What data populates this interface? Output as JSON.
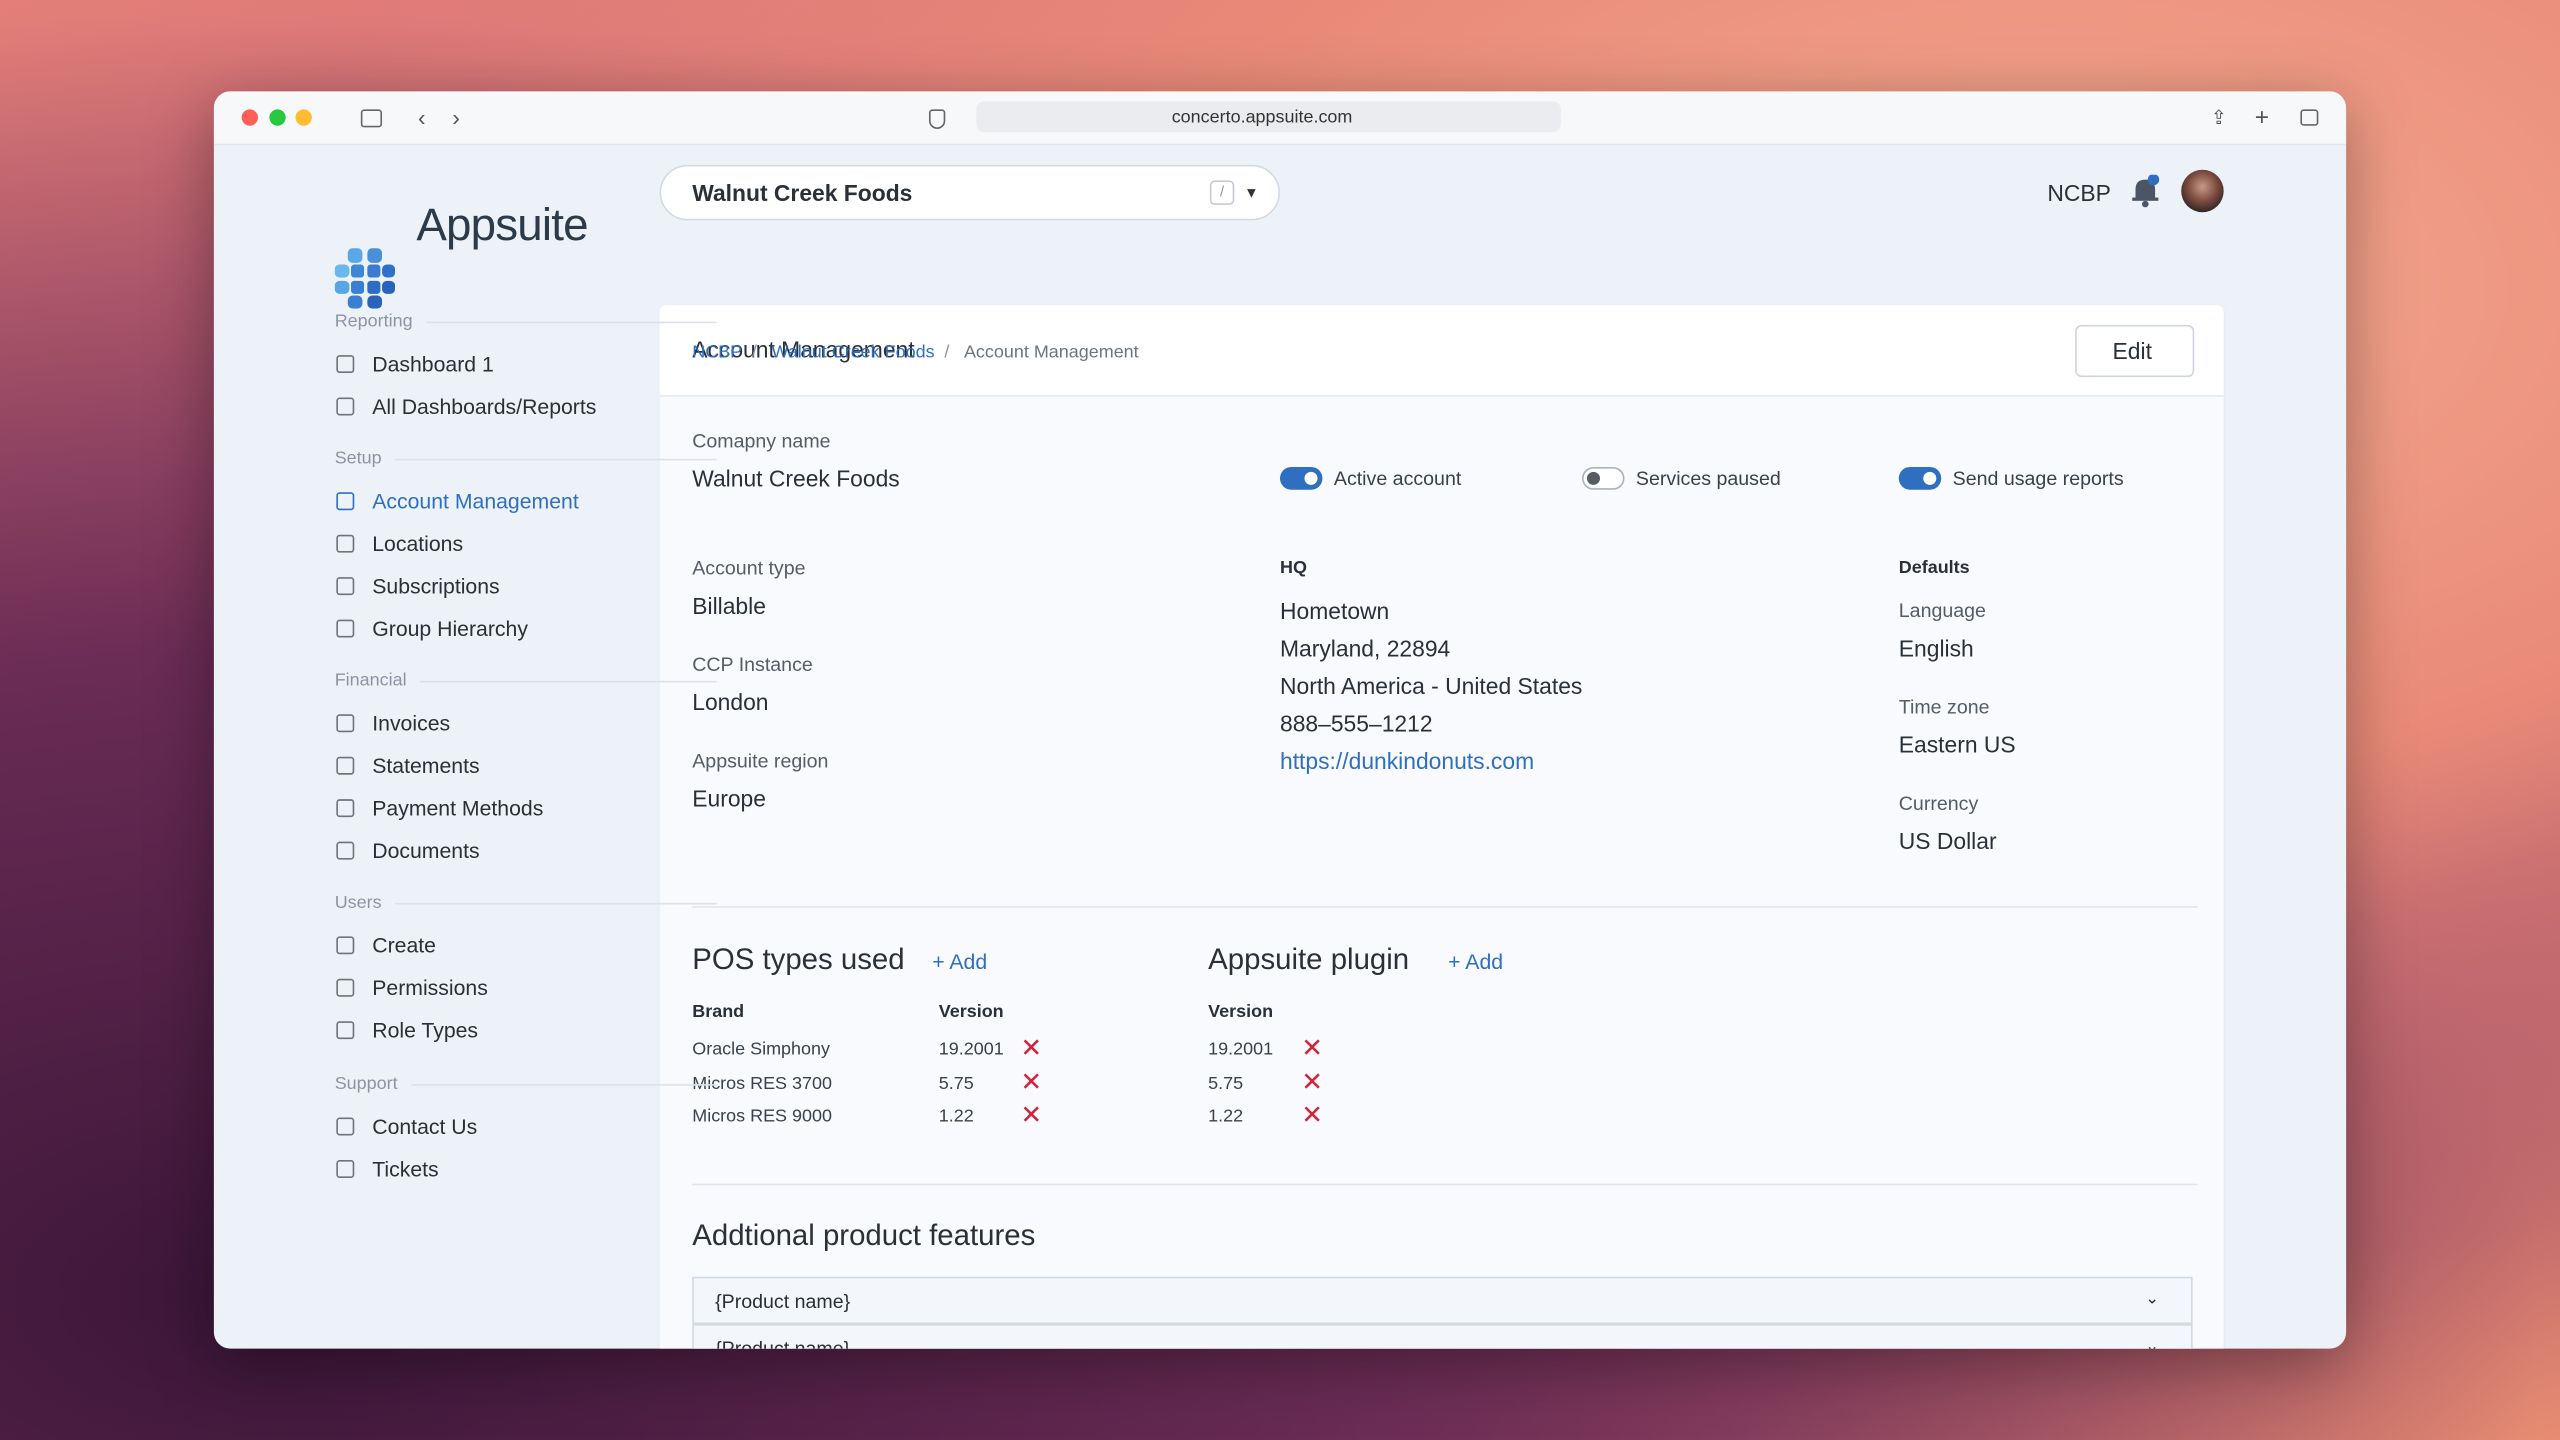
{
  "browser": {
    "url": "concerto.appsuite.com"
  },
  "brand": {
    "name": "Appsuite"
  },
  "header": {
    "account": "Walnut Creek Foods",
    "shortcut": "/",
    "user": "NCBP"
  },
  "breadcrumb": [
    "NCBP",
    "Walnut Creek Foods",
    "Account Management"
  ],
  "sidebar": [
    {
      "title": "Reporting",
      "items": [
        {
          "label": "Dashboard 1"
        },
        {
          "label": "All Dashboards/Reports"
        }
      ]
    },
    {
      "title": "Setup",
      "items": [
        {
          "label": "Account Management",
          "active": true
        },
        {
          "label": "Locations"
        },
        {
          "label": "Subscriptions"
        },
        {
          "label": "Group Hierarchy"
        }
      ]
    },
    {
      "title": "Financial",
      "items": [
        {
          "label": "Invoices"
        },
        {
          "label": "Statements"
        },
        {
          "label": "Payment Methods"
        },
        {
          "label": "Documents"
        }
      ]
    },
    {
      "title": "Users",
      "items": [
        {
          "label": "Create"
        },
        {
          "label": "Permissions"
        },
        {
          "label": "Role Types"
        }
      ]
    },
    {
      "title": "Support",
      "items": [
        {
          "label": "Contact Us"
        },
        {
          "label": "Tickets"
        }
      ]
    }
  ],
  "card": {
    "title": "Account Management",
    "edit": "Edit",
    "company": {
      "label": "Comapny name",
      "value": "Walnut Creek Foods"
    },
    "toggles": [
      {
        "label": "Active account",
        "on": true
      },
      {
        "label": "Services paused",
        "on": false
      },
      {
        "label": "Send usage reports",
        "on": true
      }
    ],
    "fields": [
      {
        "label": "Account type",
        "value": "Billable"
      },
      {
        "label": "CCP Instance",
        "value": "London"
      },
      {
        "label": "Appsuite region",
        "value": "Europe"
      }
    ],
    "hq": {
      "title": "HQ",
      "lines": [
        "Hometown",
        "Maryland, 22894",
        "North America - United States",
        "888–555–1212"
      ],
      "website": "https://dunkindonuts.com"
    },
    "defaults": {
      "title": "Defaults",
      "fields": [
        {
          "label": "Language",
          "value": "English"
        },
        {
          "label": "Time zone",
          "value": "Eastern US"
        },
        {
          "label": "Currency",
          "value": "US Dollar"
        }
      ]
    },
    "pos": {
      "title": "POS types used",
      "add": "+ Add",
      "columns": [
        "Brand",
        "Version"
      ],
      "rows": [
        [
          "Oracle Simphony",
          "19.2001"
        ],
        [
          "Micros RES 3700",
          "5.75"
        ],
        [
          "Micros RES 9000",
          "1.22"
        ]
      ]
    },
    "plugin": {
      "title": "Appsuite plugin",
      "add": "+ Add",
      "columns": [
        "Version"
      ],
      "rows": [
        [
          "19.2001"
        ],
        [
          "5.75"
        ],
        [
          "1.22"
        ]
      ]
    },
    "features": {
      "title": "Addtional product features",
      "items": [
        "{Product name}",
        "{Product name}"
      ]
    }
  }
}
